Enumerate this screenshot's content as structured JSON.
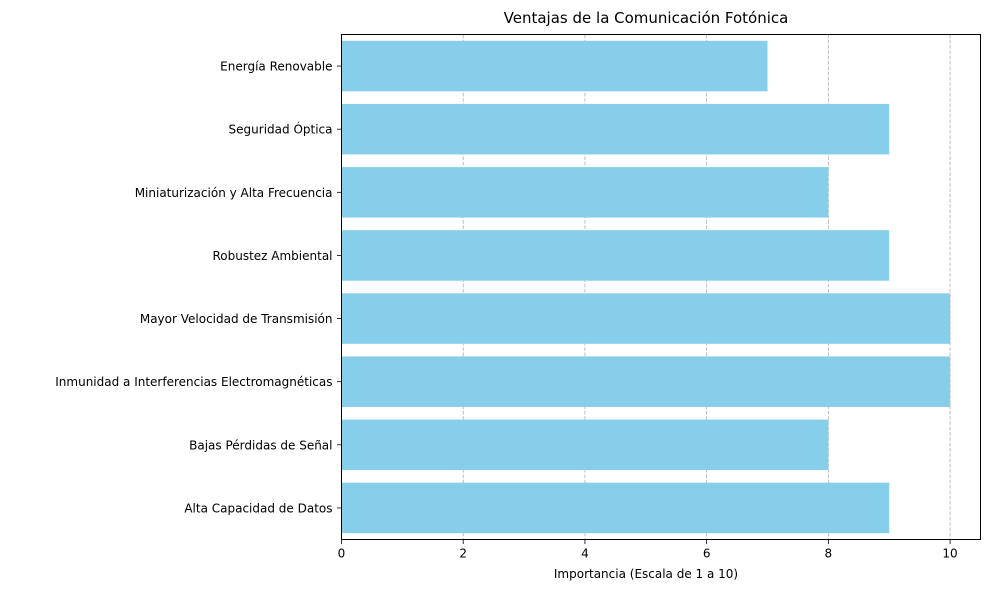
{
  "chart_data": {
    "type": "bar",
    "orientation": "horizontal",
    "title": "Ventajas de la Comunicación Fotónica",
    "xlabel": "Importancia (Escala de 1 a 10)",
    "ylabel": "",
    "xlim": [
      0,
      10.5
    ],
    "xticks": [
      0,
      2,
      4,
      6,
      8,
      10
    ],
    "grid": "x-dashed",
    "bar_color": "#87CEEB",
    "categories": [
      "Alta Capacidad de Datos",
      "Bajas Pérdidas de Señal",
      "Inmunidad a Interferencias Electromagnéticas",
      "Mayor Velocidad de Transmisión",
      "Robustez Ambiental",
      "Miniaturización y Alta Frecuencia",
      "Seguridad Óptica",
      "Energía Renovable"
    ],
    "values": [
      9,
      8,
      10,
      10,
      9,
      8,
      9,
      7
    ]
  }
}
